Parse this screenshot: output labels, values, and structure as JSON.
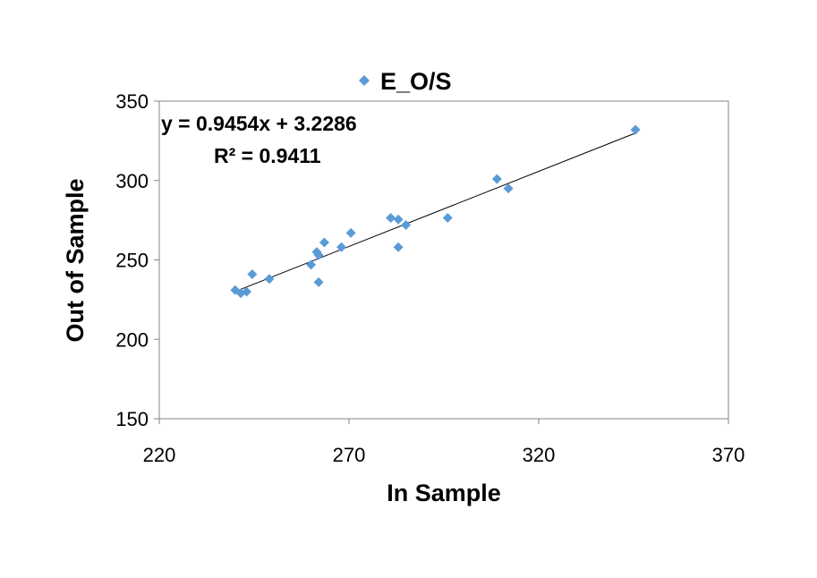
{
  "chart_data": {
    "type": "scatter",
    "xlabel": "In Sample",
    "ylabel": "Out of Sample",
    "xlim": [
      220,
      370
    ],
    "ylim": [
      150,
      350
    ],
    "xticks": [
      220,
      270,
      320,
      370
    ],
    "yticks": [
      150,
      200,
      250,
      300,
      350
    ],
    "grid": false,
    "legend_position": "top",
    "series": [
      {
        "name": "E_O/S",
        "color": "#5b9bd5",
        "marker": "diamond",
        "x": [
          240,
          241.5,
          243,
          244.5,
          249,
          260,
          261.5,
          262,
          262,
          263.5,
          268,
          270.5,
          281,
          283,
          283,
          285,
          296,
          309,
          312,
          345.5
        ],
        "y": [
          231,
          229,
          230,
          241,
          238,
          247,
          255,
          236,
          253,
          261,
          258,
          267,
          276.5,
          275.5,
          258,
          272,
          276.5,
          301,
          295,
          332
        ]
      }
    ],
    "trendline": {
      "type": "linear",
      "slope": 0.9454,
      "intercept": 3.2286,
      "x_range": [
        240,
        345.5
      ],
      "color": "#000000"
    },
    "annotations": {
      "equation": "y = 0.9454x + 3.2286",
      "r_squared": "R² = 0.9411"
    }
  }
}
